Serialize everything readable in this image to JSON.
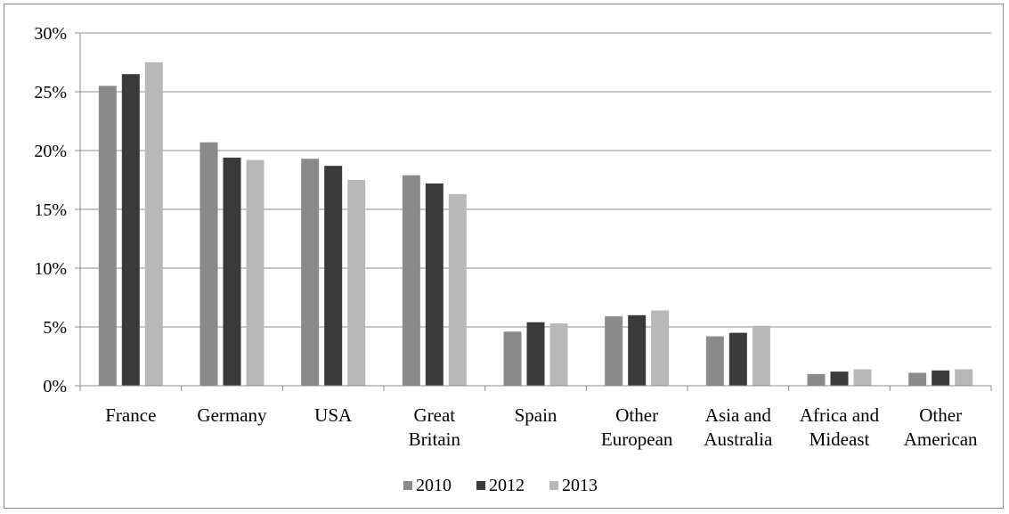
{
  "chart_data": {
    "type": "bar",
    "categories": [
      [
        "France"
      ],
      [
        "Germany"
      ],
      [
        "USA"
      ],
      [
        "Great",
        "Britain"
      ],
      [
        "Spain"
      ],
      [
        "Other",
        "European"
      ],
      [
        "Asia and",
        "Australia"
      ],
      [
        "Africa and",
        "Mideast"
      ],
      [
        "Other",
        "American"
      ]
    ],
    "series": [
      {
        "name": "2010",
        "color": "#8a8a8a",
        "values": [
          25.5,
          20.7,
          19.3,
          17.9,
          4.6,
          5.9,
          4.2,
          1.0,
          1.1
        ]
      },
      {
        "name": "2012",
        "color": "#3a3a3a",
        "values": [
          26.5,
          19.4,
          18.7,
          17.2,
          5.4,
          6.0,
          4.5,
          1.2,
          1.3
        ]
      },
      {
        "name": "2013",
        "color": "#b8b8b8",
        "values": [
          27.5,
          19.2,
          17.5,
          16.3,
          5.3,
          6.4,
          5.1,
          1.4,
          1.4
        ]
      }
    ],
    "yticks": [
      "0%",
      "5%",
      "10%",
      "15%",
      "20%",
      "25%",
      "30%"
    ],
    "ylim": [
      0,
      30
    ],
    "grid": true,
    "legend_position": "bottom",
    "title": "",
    "xlabel": "",
    "ylabel": ""
  }
}
